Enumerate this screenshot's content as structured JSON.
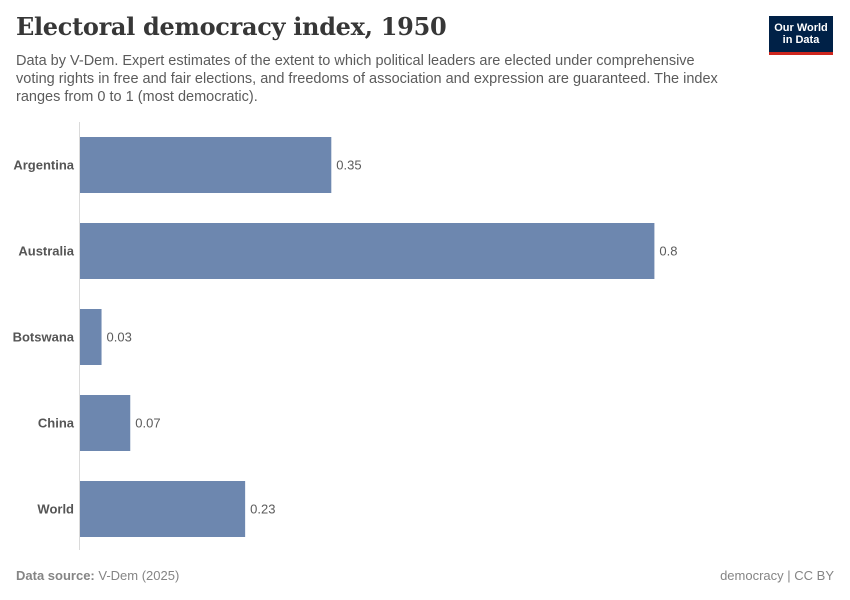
{
  "header": {
    "title": "Electoral democracy index, 1950",
    "subtitle": "Data by V-Dem. Expert estimates of the extent to which political leaders are elected under comprehensive voting rights in free and fair elections, and freedoms of association and expression are guaranteed. The index ranges from 0 to 1 (most democratic).",
    "logo_line1": "Our World",
    "logo_line2": "in Data"
  },
  "colors": {
    "bar": "#6d87af",
    "logo_bg": "#002147",
    "logo_accent": "#ce261e"
  },
  "footer": {
    "source_label": "Data source:",
    "source_value": "V-Dem (2025)",
    "right": "democracy | CC BY"
  },
  "chart_data": {
    "type": "bar",
    "orientation": "horizontal",
    "title": "Electoral democracy index, 1950",
    "xlabel": "",
    "ylabel": "",
    "xlim": [
      0,
      1
    ],
    "grid": false,
    "categories": [
      "Argentina",
      "Australia",
      "Botswana",
      "China",
      "World"
    ],
    "values": [
      0.35,
      0.8,
      0.03,
      0.07,
      0.23
    ],
    "value_labels": [
      "0.35",
      "0.8",
      "0.03",
      "0.07",
      "0.23"
    ]
  }
}
